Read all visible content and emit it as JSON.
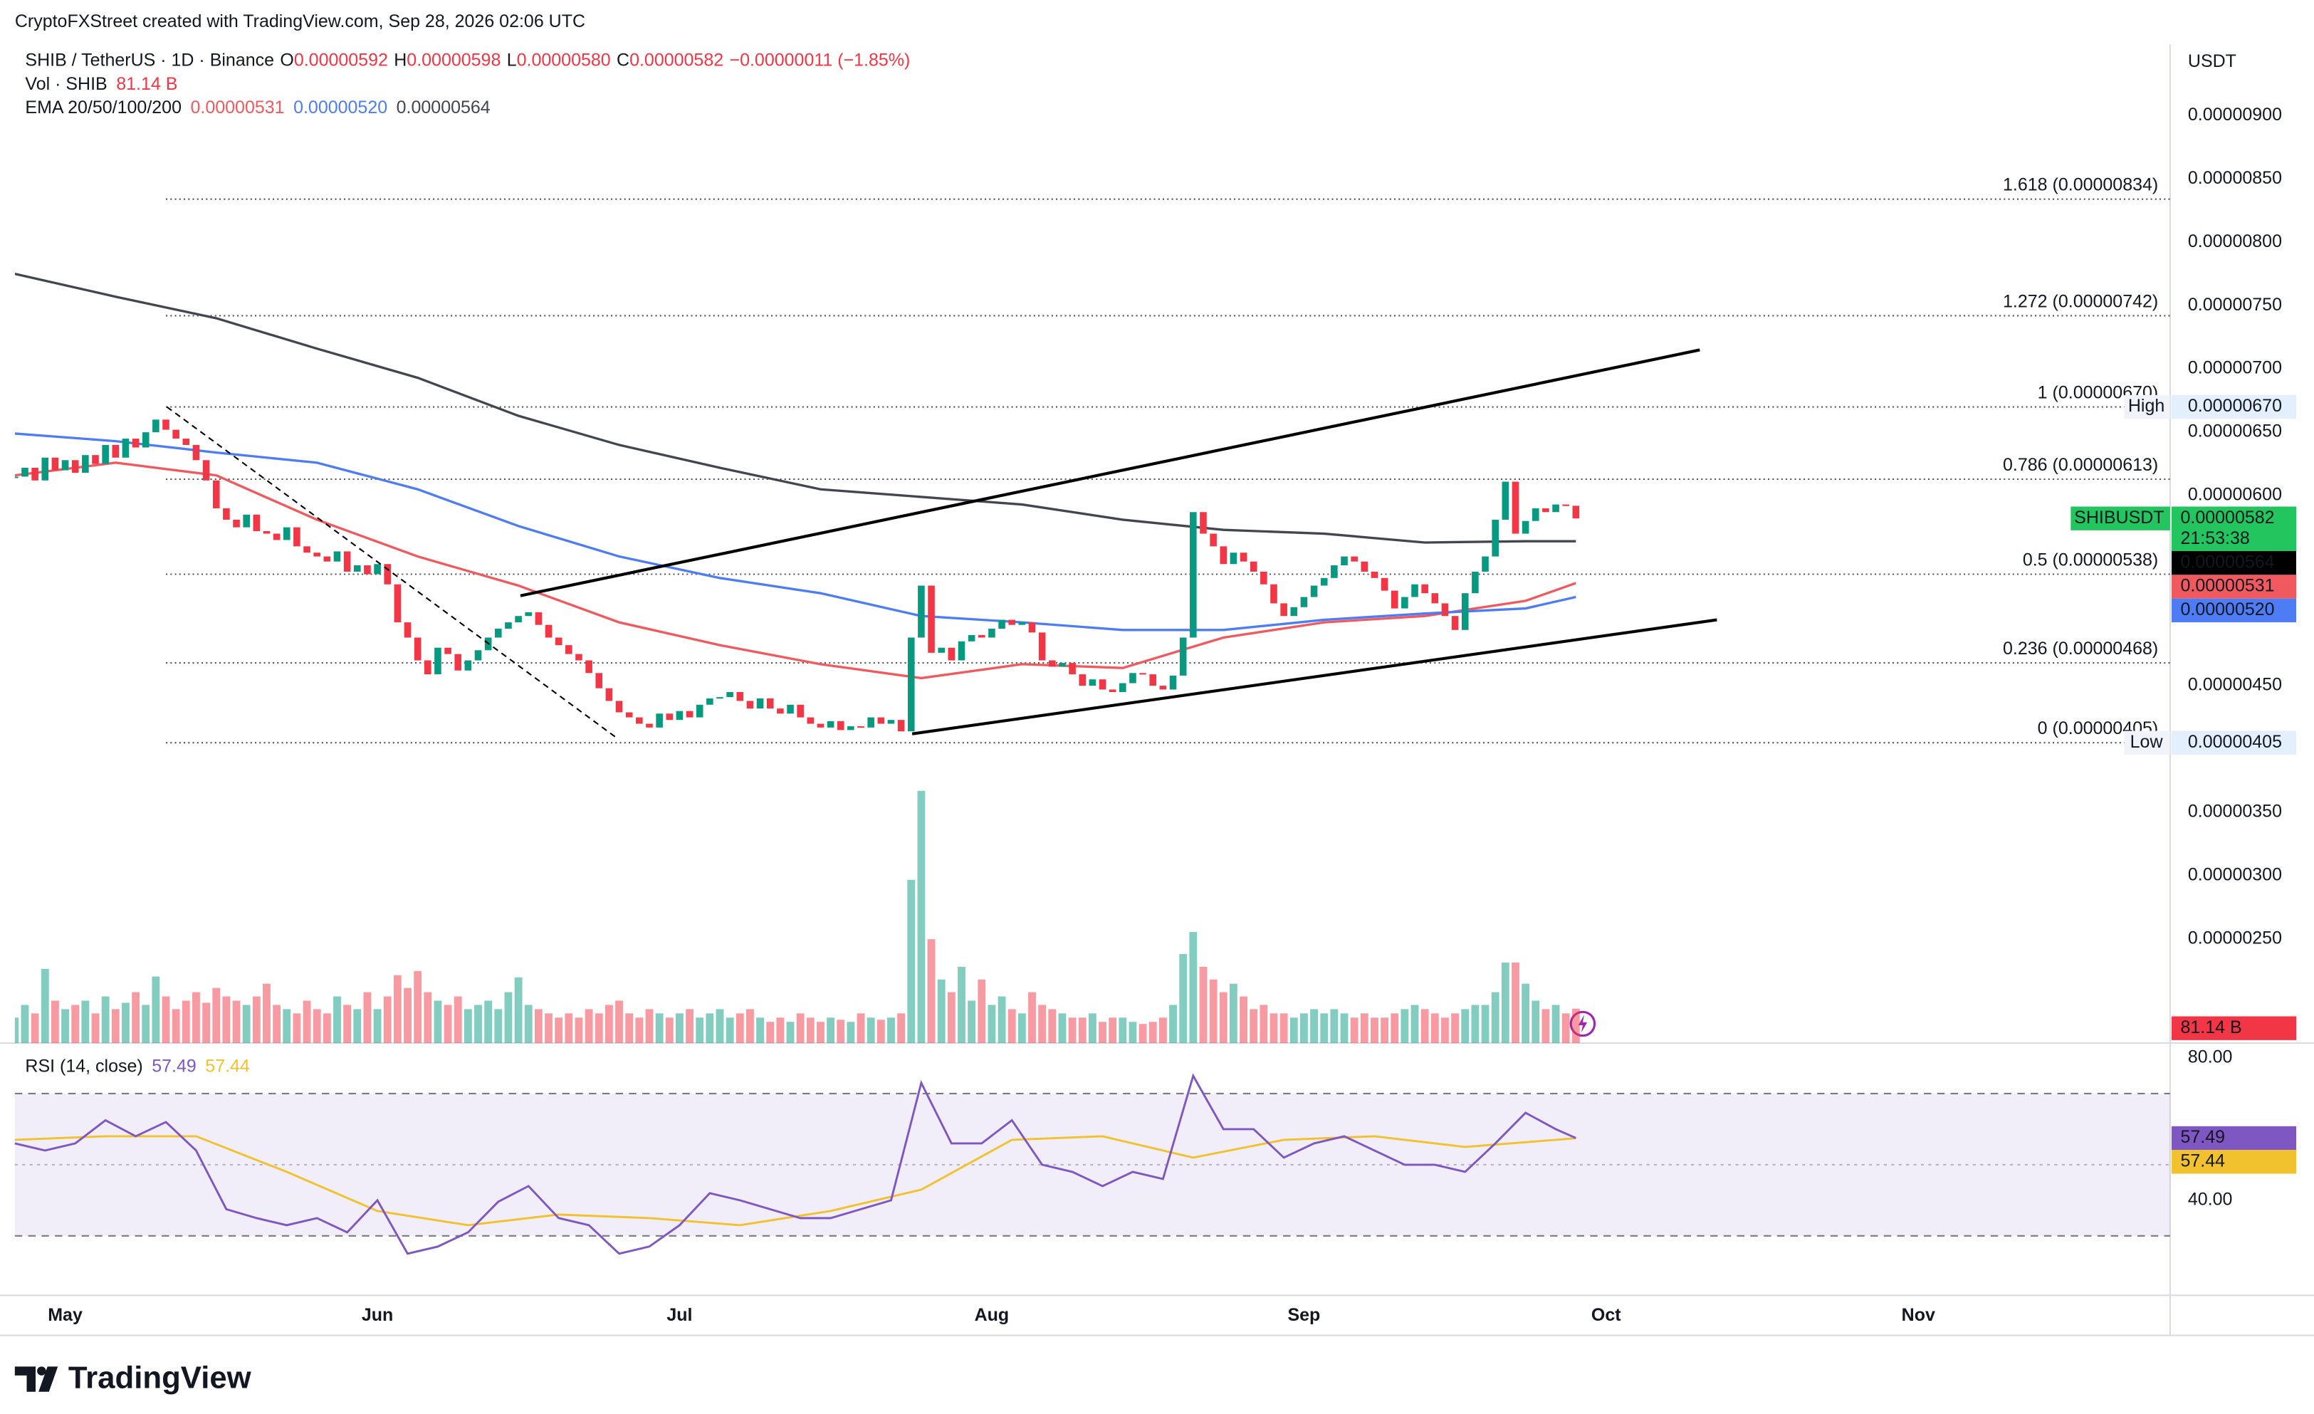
{
  "chart_data": [
    {
      "type": "candlestick",
      "credit": "CryptoFXStreet created with TradingView.com, Sep 28, 2026 02:06 UTC",
      "title": "SHIB / TetherUS · 1D · Binance",
      "ohlc_labels": [
        {
          "key": "O",
          "value": "0.00000592"
        },
        {
          "key": "H",
          "value": "0.00000598"
        },
        {
          "key": "L",
          "value": "0.00000580"
        },
        {
          "key": "C",
          "value": "0.00000582"
        }
      ],
      "change": "−0.00000011 (−1.85%)",
      "axis_unit": "USDT",
      "brand": "TradingView",
      "xlim": [
        -5,
        209
      ],
      "xticks": [
        {
          "value": 0,
          "label": "May"
        },
        {
          "value": 31,
          "label": "Jun"
        },
        {
          "value": 61,
          "label": "Jul"
        },
        {
          "value": 92,
          "label": "Aug"
        },
        {
          "value": 123,
          "label": "Sep"
        },
        {
          "value": 153,
          "label": "Oct"
        },
        {
          "value": 184,
          "label": "Nov"
        }
      ],
      "ylim": [
        1.68e-06,
        9.56e-06
      ],
      "yticks": [
        {
          "value": 9e-06,
          "label": "0.00000900"
        },
        {
          "value": 8.5e-06,
          "label": "0.00000850"
        },
        {
          "value": 8e-06,
          "label": "0.00000800"
        },
        {
          "value": 7.5e-06,
          "label": "0.00000750"
        },
        {
          "value": 7e-06,
          "label": "0.00000700"
        },
        {
          "value": 6.5e-06,
          "label": "0.00000650"
        },
        {
          "value": 6e-06,
          "label": "0.00000600"
        },
        {
          "value": 4.5e-06,
          "label": "0.00000450"
        },
        {
          "value": 3.5e-06,
          "label": "0.00000350"
        },
        {
          "value": 3e-06,
          "label": "0.00000300"
        },
        {
          "value": 2.5e-06,
          "label": "0.00000250"
        }
      ],
      "x": [
        -5,
        -4,
        -3,
        -2,
        -1,
        0,
        1,
        2,
        3,
        4,
        5,
        6,
        7,
        8,
        9,
        10,
        11,
        12,
        13,
        14,
        15,
        16,
        17,
        18,
        19,
        20,
        21,
        22,
        23,
        24,
        25,
        26,
        27,
        28,
        29,
        30,
        31,
        32,
        33,
        34,
        35,
        36,
        37,
        38,
        39,
        40,
        41,
        42,
        43,
        44,
        45,
        46,
        47,
        48,
        49,
        50,
        51,
        52,
        53,
        54,
        55,
        56,
        57,
        58,
        59,
        60,
        61,
        62,
        63,
        64,
        65,
        66,
        67,
        68,
        69,
        70,
        71,
        72,
        73,
        74,
        75,
        76,
        77,
        78,
        79,
        80,
        81,
        82,
        83,
        84,
        85,
        86,
        87,
        88,
        89,
        90,
        91,
        92,
        93,
        94,
        95,
        96,
        97,
        98,
        99,
        100,
        101,
        102,
        103,
        104,
        105,
        106,
        107,
        108,
        109,
        110,
        111,
        112,
        113,
        114,
        115,
        116,
        117,
        118,
        119,
        120,
        121,
        122,
        123,
        124,
        125,
        126,
        127,
        128,
        129,
        130,
        131,
        132,
        133,
        134,
        135,
        136,
        137,
        138,
        139,
        140,
        141,
        142,
        143,
        144,
        145,
        146,
        147,
        148,
        149,
        150
      ],
      "series": [
        {
          "name": "SHIBUSDT",
          "up_color": "#089981",
          "down_color": "#f23645",
          "last_label": "0.00000582",
          "countdown": "21:53:38",
          "values": [
            6.15e-06,
            6.22e-06,
            6.12e-06,
            6.3e-06,
            6.2e-06,
            6.28e-06,
            6.18e-06,
            6.32e-06,
            6.25e-06,
            6.4e-06,
            6.3e-06,
            6.45e-06,
            6.38e-06,
            6.5e-06,
            6.6e-06,
            6.52e-06,
            6.45e-06,
            6.4e-06,
            6.28e-06,
            6.12e-06,
            5.9e-06,
            5.81e-06,
            5.75e-06,
            5.85e-06,
            5.72e-06,
            5.7e-06,
            5.65e-06,
            5.75e-06,
            5.6e-06,
            5.55e-06,
            5.52e-06,
            5.48e-06,
            5.56e-06,
            5.4e-06,
            5.45e-06,
            5.38e-06,
            5.46e-06,
            5.3e-06,
            5e-06,
            4.88e-06,
            4.7e-06,
            4.59e-06,
            4.8e-06,
            4.75e-06,
            4.62e-06,
            4.7e-06,
            4.78e-06,
            4.88e-06,
            4.95e-06,
            5e-06,
            5.05e-06,
            5.08e-06,
            4.98e-06,
            4.88e-06,
            4.82e-06,
            4.75e-06,
            4.7e-06,
            4.6e-06,
            4.48e-06,
            4.38e-06,
            4.29e-06,
            4.25e-06,
            4.2e-06,
            4.17e-06,
            4.28e-06,
            4.23e-06,
            4.3e-06,
            4.25e-06,
            4.35e-06,
            4.4e-06,
            4.41e-06,
            4.45e-06,
            4.38e-06,
            4.32e-06,
            4.4e-06,
            4.32e-06,
            4.28e-06,
            4.35e-06,
            4.25e-06,
            4.2e-06,
            4.17e-06,
            4.22e-06,
            4.15e-06,
            4.18e-06,
            4.17e-06,
            4.25e-06,
            4.2e-06,
            4.23e-06,
            4.14e-06,
            4.88e-06,
            5.29e-06,
            4.76e-06,
            4.8e-06,
            4.7e-06,
            4.85e-06,
            4.9e-06,
            4.88e-06,
            4.95e-06,
            5.02e-06,
            4.98e-06,
            5e-06,
            4.92e-06,
            4.7e-06,
            4.65e-06,
            4.68e-06,
            4.59e-06,
            4.5e-06,
            4.55e-06,
            4.47e-06,
            4.45e-06,
            4.52e-06,
            4.6e-06,
            4.59e-06,
            4.5e-06,
            4.47e-06,
            4.58e-06,
            4.88e-06,
            5.87e-06,
            5.7e-06,
            5.6e-06,
            5.46e-06,
            5.55e-06,
            5.48e-06,
            5.4e-06,
            5.3e-06,
            5.15e-06,
            5.05e-06,
            5.12e-06,
            5.2e-06,
            5.29e-06,
            5.35e-06,
            5.45e-06,
            5.52e-06,
            5.48e-06,
            5.4e-06,
            5.35e-06,
            5.25e-06,
            5.11e-06,
            5.2e-06,
            5.3e-06,
            5.23e-06,
            5.15e-06,
            5.05e-06,
            4.94e-06,
            5.23e-06,
            5.4e-06,
            5.52e-06,
            5.81e-06,
            6.11e-06,
            5.7e-06,
            5.8e-06,
            5.9e-06,
            5.87e-06,
            5.93e-06,
            5.92e-06,
            5.82e-06
          ]
        }
      ],
      "volume": {
        "name": "Vol · SHIB",
        "ylim": [
          0,
          700
        ],
        "last_label": "81.14 B",
        "values": [
          60,
          90,
          70,
          175,
          100,
          80,
          90,
          100,
          70,
          110,
          80,
          95,
          120,
          90,
          157,
          110,
          80,
          100,
          120,
          95,
          130,
          110,
          100,
          90,
          110,
          140,
          90,
          80,
          70,
          100,
          80,
          70,
          110,
          90,
          80,
          120,
          80,
          110,
          160,
          130,
          170,
          120,
          100,
          90,
          110,
          80,
          90,
          100,
          80,
          120,
          155,
          90,
          80,
          70,
          60,
          70,
          60,
          80,
          70,
          90,
          100,
          70,
          60,
          80,
          70,
          60,
          70,
          80,
          60,
          70,
          80,
          60,
          70,
          80,
          60,
          50,
          60,
          50,
          70,
          60,
          50,
          60,
          55,
          50,
          70,
          60,
          55,
          60,
          70,
          385,
          595,
          245,
          150,
          120,
          180,
          100,
          150,
          90,
          110,
          80,
          70,
          120,
          90,
          80,
          70,
          60,
          60,
          70,
          50,
          60,
          60,
          50,
          45,
          50,
          60,
          90,
          210,
          262,
          180,
          150,
          120,
          140,
          110,
          80,
          90,
          70,
          70,
          60,
          70,
          80,
          70,
          80,
          70,
          60,
          70,
          60,
          60,
          70,
          80,
          90,
          80,
          70,
          60,
          70,
          80,
          90,
          90,
          120,
          190,
          190,
          140,
          100,
          80,
          90,
          70,
          81.14
        ]
      },
      "ema": {
        "name": "EMA 20/50/100/200",
        "lines": [
          {
            "color": "#f05a5f",
            "last_label": "0.00000531",
            "x": [
              -5,
              5,
              15,
              25,
              35,
              45,
              55,
              65,
              75,
              85,
              95,
              105,
              115,
              125,
              135,
              145,
              150
            ],
            "values": [
              6.16e-06,
              6.26e-06,
              6.16e-06,
              5.81e-06,
              5.52e-06,
              5.29e-06,
              5e-06,
              4.82e-06,
              4.67e-06,
              4.56e-06,
              4.67e-06,
              4.64e-06,
              4.88e-06,
              5e-06,
              5.05e-06,
              5.17e-06,
              5.31e-06
            ]
          },
          {
            "color": "#4d7cf5",
            "last_label": "0.00000520",
            "x": [
              -5,
              5,
              15,
              25,
              35,
              45,
              55,
              65,
              75,
              85,
              95,
              105,
              115,
              125,
              135,
              145,
              150
            ],
            "values": [
              6.49e-06,
              6.43e-06,
              6.34e-06,
              6.26e-06,
              6.05e-06,
              5.76e-06,
              5.52e-06,
              5.35e-06,
              5.23e-06,
              5.05e-06,
              5e-06,
              4.94e-06,
              4.94e-06,
              5.02e-06,
              5.07e-06,
              5.11e-06,
              5.2e-06
            ]
          },
          {
            "color": "#434651",
            "last_label": "0.00000564",
            "x": [
              -5,
              5,
              15,
              25,
              35,
              45,
              55,
              65,
              75,
              85,
              95,
              105,
              115,
              125,
              135,
              145,
              150
            ],
            "values": [
              7.75e-06,
              7.57e-06,
              7.4e-06,
              7.16e-06,
              6.93e-06,
              6.63e-06,
              6.4e-06,
              6.22e-06,
              6.05e-06,
              5.99e-06,
              5.93e-06,
              5.81e-06,
              5.73e-06,
              5.7e-06,
              5.63e-06,
              5.64e-06,
              5.64e-06
            ]
          }
        ]
      },
      "high_low": [
        {
          "name": "High",
          "value": 6.7e-06,
          "label": "0.00000670"
        },
        {
          "name": "Low",
          "value": 4.05e-06,
          "label": "0.00000405"
        }
      ],
      "fib_start": 10,
      "fib": [
        {
          "value": 8.34e-06,
          "label": "1.618 (0.00000834)"
        },
        {
          "value": 7.42e-06,
          "label": "1.272 (0.00000742)"
        },
        {
          "value": 6.7e-06,
          "label": "1 (0.00000670)"
        },
        {
          "value": 6.13e-06,
          "label": "0.786 (0.00000613)"
        },
        {
          "value": 5.38e-06,
          "label": "0.5 (0.00000538)"
        },
        {
          "value": 4.68e-06,
          "label": "0.236 (0.00000468)"
        },
        {
          "value": 4.05e-06,
          "label": "0 (0.00000405)"
        }
      ],
      "trendlines": [
        {
          "x": [
            45.2,
            162.3
          ],
          "y": [
            5.21e-06,
            7.15e-06
          ],
          "dashed": false
        },
        {
          "x": [
            84.1,
            164
          ],
          "y": [
            4.12e-06,
            5.02e-06
          ],
          "dashed": false
        },
        {
          "x": [
            10.1,
            54.9
          ],
          "y": [
            6.7e-06,
            4.08e-06
          ],
          "dashed": true
        }
      ]
    },
    {
      "type": "line",
      "title": "RSI (14, close)",
      "ylim": [
        13.3,
        84.2
      ],
      "yticks": [
        {
          "value": 80,
          "label": "80.00"
        },
        {
          "value": 40,
          "label": "40.00"
        }
      ],
      "bands": [
        30,
        70
      ],
      "midline": 50,
      "band_color": "#7e57c2",
      "series": [
        {
          "color": "#7e57c2",
          "last_label": "57.49",
          "x": [
            -5,
            -2,
            1,
            4,
            7,
            10,
            13,
            16,
            19,
            22,
            25,
            28,
            31,
            34,
            37,
            40,
            43,
            46,
            49,
            52,
            55,
            58,
            61,
            64,
            67,
            70,
            73,
            76,
            79,
            82,
            85,
            88,
            91,
            94,
            97,
            100,
            103,
            106,
            109,
            112,
            115,
            118,
            121,
            124,
            127,
            130,
            133,
            136,
            139,
            142,
            145,
            148,
            150
          ],
          "values": [
            56,
            54,
            56,
            62.5,
            58,
            62,
            54,
            37.5,
            35,
            33,
            35,
            31,
            40,
            25,
            27,
            31,
            39.6,
            44,
            35,
            33,
            25,
            27,
            33,
            42,
            40,
            37.5,
            35,
            35,
            37.5,
            40,
            73,
            56,
            56,
            62.5,
            50,
            48,
            44,
            48,
            46,
            75,
            60,
            60,
            52,
            56,
            58,
            54,
            50,
            50,
            48,
            56,
            64.6,
            60,
            57.49
          ]
        },
        {
          "color": "#f2c12e",
          "last_label": "57.44",
          "x": [
            -5,
            4,
            13,
            22,
            31,
            40,
            49,
            58,
            67,
            76,
            85,
            94,
            103,
            112,
            121,
            130,
            139,
            148,
            150
          ],
          "values": [
            57,
            58,
            58,
            48,
            37,
            33,
            36,
            35,
            33,
            37,
            43,
            57,
            58,
            52,
            57,
            58,
            55,
            57,
            57.44
          ]
        }
      ]
    }
  ]
}
